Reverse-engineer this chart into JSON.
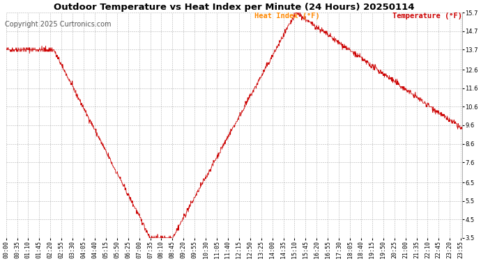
{
  "title": "Outdoor Temperature vs Heat Index per Minute (24 Hours) 20250114",
  "copyright": "Copyright 2025 Curtronics.com",
  "legend_heat": "Heat Index (°F)",
  "legend_temp": "Temperature (°F)",
  "legend_heat_color": "#ff8800",
  "legend_temp_color": "#cc0000",
  "line_color": "#cc0000",
  "ylim": [
    3.5,
    15.7
  ],
  "yticks": [
    3.5,
    4.5,
    5.5,
    6.5,
    7.6,
    8.6,
    9.6,
    10.6,
    11.6,
    12.6,
    13.7,
    14.7,
    15.7
  ],
  "background_color": "#ffffff",
  "grid_color": "#aaaaaa",
  "title_color": "#000000",
  "title_fontsize": 9.5,
  "copyright_fontsize": 7,
  "tick_label_fontsize": 6,
  "legend_fontsize": 7.5
}
